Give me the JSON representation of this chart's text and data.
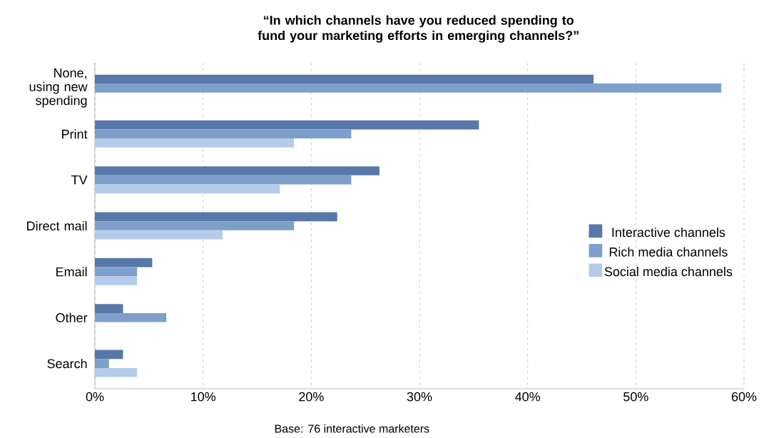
{
  "chart_data": {
    "type": "bar",
    "orientation": "horizontal",
    "title": "“In which channels have you reduced spending to fund your marketing efforts in emerging channels?”",
    "categories": [
      "None, using new spending",
      "Print",
      "TV",
      "Direct mail",
      "Email",
      "Other",
      "Search"
    ],
    "series": [
      {
        "name": "Interactive channels",
        "color": "#5778a8",
        "values": [
          46.1,
          35.5,
          26.3,
          22.4,
          5.3,
          2.6,
          2.6
        ]
      },
      {
        "name": "Rich media channels",
        "color": "#7f9fcb",
        "values": [
          57.9,
          23.7,
          23.7,
          18.4,
          3.9,
          6.6,
          1.3
        ]
      },
      {
        "name": "Social media channels",
        "color": "#b4cbea",
        "values": [
          null,
          18.4,
          17.1,
          11.8,
          3.9,
          null,
          3.9
        ]
      }
    ],
    "xlim": [
      0,
      60
    ],
    "xticks": [
      {
        "value": 0,
        "label": "0%"
      },
      {
        "value": 10,
        "label": "10%"
      },
      {
        "value": 20,
        "label": "20%"
      },
      {
        "value": 30,
        "label": "30%"
      },
      {
        "value": 40,
        "label": "40%"
      },
      {
        "value": 50,
        "label": "50%"
      },
      {
        "value": 60,
        "label": "60%"
      }
    ],
    "grid": "x",
    "legend": "right",
    "annotations": [
      "Base: 76 interactive marketers"
    ]
  }
}
